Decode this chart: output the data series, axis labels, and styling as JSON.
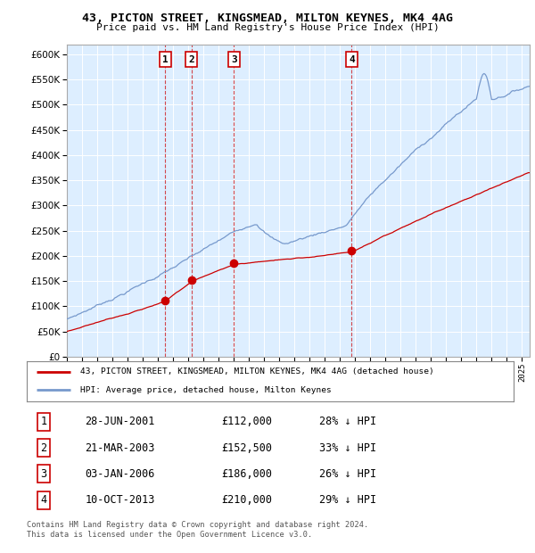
{
  "title1": "43, PICTON STREET, KINGSMEAD, MILTON KEYNES, MK4 4AG",
  "title2": "Price paid vs. HM Land Registry's House Price Index (HPI)",
  "xlim_start": 1995.0,
  "xlim_end": 2025.5,
  "ylim": [
    0,
    620000
  ],
  "yticks": [
    0,
    50000,
    100000,
    150000,
    200000,
    250000,
    300000,
    350000,
    400000,
    450000,
    500000,
    550000,
    600000
  ],
  "hpi_color": "#7799cc",
  "sale_color": "#cc0000",
  "bg_color": "#ddeeff",
  "sale_dates_num": [
    2001.486,
    2003.22,
    2006.008,
    2013.775
  ],
  "sale_prices": [
    112000,
    152500,
    186000,
    210000
  ],
  "sale_labels": [
    "1",
    "2",
    "3",
    "4"
  ],
  "legend_sale": "43, PICTON STREET, KINGSMEAD, MILTON KEYNES, MK4 4AG (detached house)",
  "legend_hpi": "HPI: Average price, detached house, Milton Keynes",
  "table_entries": [
    {
      "num": "1",
      "date": "28-JUN-2001",
      "price": "£112,000",
      "note": "28% ↓ HPI"
    },
    {
      "num": "2",
      "date": "21-MAR-2003",
      "price": "£152,500",
      "note": "33% ↓ HPI"
    },
    {
      "num": "3",
      "date": "03-JAN-2006",
      "price": "£186,000",
      "note": "26% ↓ HPI"
    },
    {
      "num": "4",
      "date": "10-OCT-2013",
      "price": "£210,000",
      "note": "29% ↓ HPI"
    }
  ],
  "footnote1": "Contains HM Land Registry data © Crown copyright and database right 2024.",
  "footnote2": "This data is licensed under the Open Government Licence v3.0."
}
